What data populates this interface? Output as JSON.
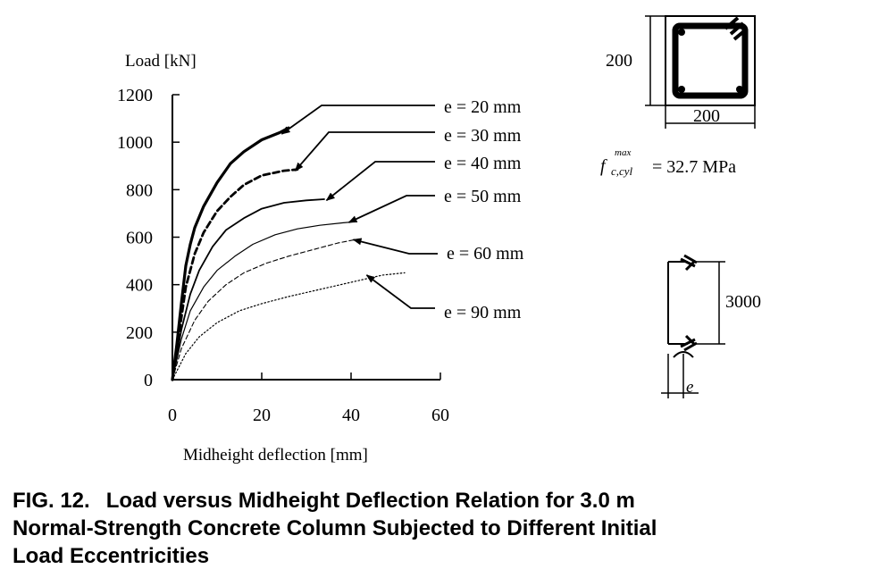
{
  "chart_data": {
    "type": "line",
    "ylabel": "Load [kN]",
    "xlabel": "Midheight deflection [mm]",
    "xlim": [
      0,
      60
    ],
    "ylim": [
      0,
      1200
    ],
    "xticks": [
      "0",
      "20",
      "40",
      "60"
    ],
    "yticks": [
      "0",
      "200",
      "400",
      "600",
      "800",
      "1000",
      "1200"
    ],
    "grid": false,
    "series": [
      {
        "name": "e = 20 mm",
        "style": "solid-thick",
        "points": [
          [
            0,
            0
          ],
          [
            1,
            150
          ],
          [
            2,
            320
          ],
          [
            3,
            480
          ],
          [
            4,
            570
          ],
          [
            5,
            640
          ],
          [
            7,
            730
          ],
          [
            10,
            830
          ],
          [
            13,
            910
          ],
          [
            16,
            960
          ],
          [
            20,
            1010
          ],
          [
            24,
            1040
          ],
          [
            26,
            1060
          ]
        ],
        "arrow_to": [
          24.5,
          1035
        ]
      },
      {
        "name": "e = 30 mm",
        "style": "dashed-thick",
        "points": [
          [
            0,
            0
          ],
          [
            1,
            120
          ],
          [
            2,
            260
          ],
          [
            3,
            390
          ],
          [
            5,
            530
          ],
          [
            7,
            620
          ],
          [
            10,
            710
          ],
          [
            13,
            770
          ],
          [
            16,
            820
          ],
          [
            20,
            860
          ],
          [
            25,
            880
          ],
          [
            28,
            885
          ]
        ],
        "arrow_to": [
          27.5,
          880
        ]
      },
      {
        "name": "e = 40 mm",
        "style": "solid",
        "points": [
          [
            0,
            0
          ],
          [
            1,
            100
          ],
          [
            2,
            210
          ],
          [
            4,
            360
          ],
          [
            6,
            460
          ],
          [
            9,
            560
          ],
          [
            12,
            630
          ],
          [
            16,
            680
          ],
          [
            20,
            720
          ],
          [
            25,
            745
          ],
          [
            30,
            755
          ],
          [
            34,
            760
          ]
        ],
        "arrow_to": [
          34.5,
          755
        ]
      },
      {
        "name": "e = 50 mm",
        "style": "solid-thin",
        "points": [
          [
            0,
            0
          ],
          [
            2,
            170
          ],
          [
            4,
            290
          ],
          [
            7,
            390
          ],
          [
            10,
            460
          ],
          [
            14,
            520
          ],
          [
            18,
            570
          ],
          [
            23,
            610
          ],
          [
            28,
            635
          ],
          [
            33,
            650
          ],
          [
            38,
            660
          ],
          [
            41,
            665
          ]
        ],
        "arrow_to": [
          39.5,
          662
        ]
      },
      {
        "name": "e = 60 mm",
        "style": "dashed-thin",
        "points": [
          [
            0,
            0
          ],
          [
            2,
            130
          ],
          [
            5,
            250
          ],
          [
            8,
            330
          ],
          [
            12,
            400
          ],
          [
            16,
            450
          ],
          [
            21,
            490
          ],
          [
            26,
            520
          ],
          [
            32,
            550
          ],
          [
            37,
            575
          ],
          [
            41,
            590
          ]
        ],
        "arrow_to": [
          40.5,
          590
        ]
      },
      {
        "name": "e = 90 mm",
        "style": "dotted",
        "points": [
          [
            0,
            0
          ],
          [
            3,
            110
          ],
          [
            6,
            180
          ],
          [
            10,
            240
          ],
          [
            15,
            290
          ],
          [
            20,
            320
          ],
          [
            26,
            350
          ],
          [
            33,
            380
          ],
          [
            40,
            410
          ],
          [
            47,
            440
          ],
          [
            52,
            450
          ]
        ],
        "arrow_to": [
          43.5,
          440
        ]
      }
    ],
    "annotations": {
      "section_width": "200",
      "section_height": "200",
      "strength_symbol": "f",
      "strength_subscript": "c,cyl",
      "strength_superscript": "max",
      "strength_value": "= 32.7 MPa",
      "column_length": "3000",
      "eccentricity_symbol": "e"
    }
  },
  "caption": {
    "label": "FIG. 12.",
    "line1": "Load versus Midheight Deflection Relation for 3.0 m",
    "line2": "Normal-Strength Concrete Column Subjected to Different Initial",
    "line3": "Load Eccentricities"
  }
}
